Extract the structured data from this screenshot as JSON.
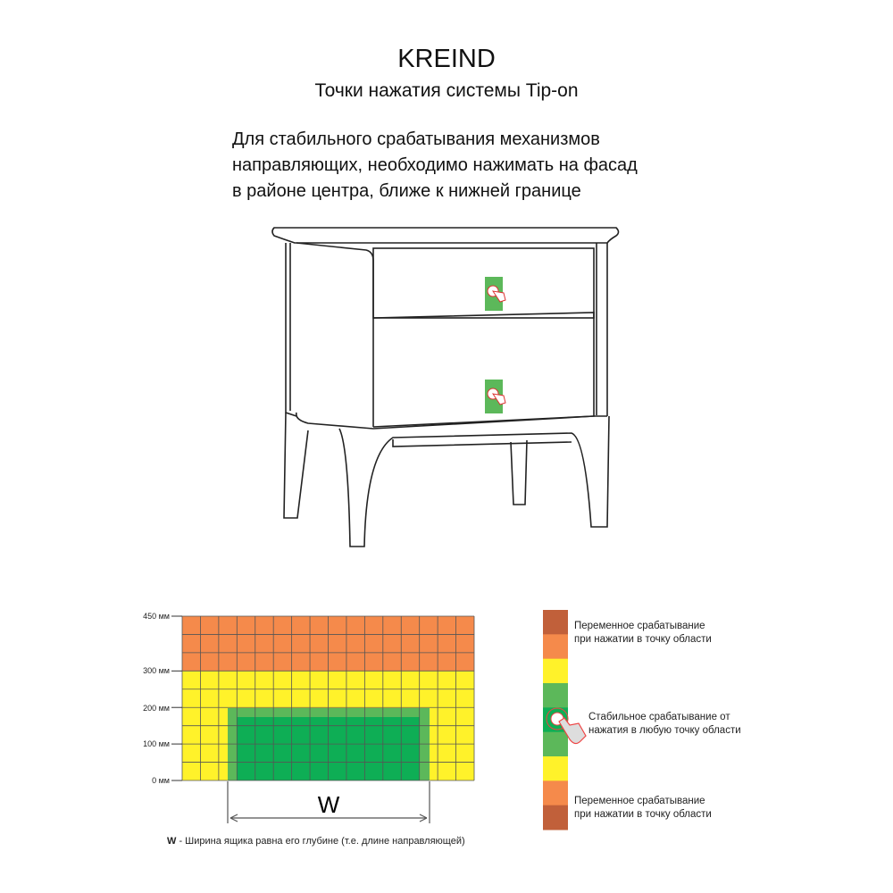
{
  "header": {
    "brand": "KREIND",
    "subtitle": "Точки нажатия системы Tip-on"
  },
  "description": [
    "Для стабильного срабатывания механизмов",
    "направляющих, необходимо нажимать на фасад",
    "в районе центра, ближе к нижней границе"
  ],
  "diagram": {
    "y_labels": [
      "450 мм",
      "300 мм",
      "200 мм",
      "100 мм",
      "0 мм"
    ],
    "width_symbol": "W",
    "footnote_bold": "W",
    "footnote": " - Ширина ящика равна его глубине (т.е. длине направляющей)",
    "colors": {
      "orange": "#f58a4b",
      "yellow": "#fff22a",
      "light_green": "#5cb85a",
      "dark_green": "#0eae55",
      "brown": "#c1603a",
      "grid_line": "#555555"
    }
  },
  "legend": {
    "top": [
      "Переменное срабатывание",
      "при нажатии в точку области"
    ],
    "middle": [
      "Стабильное срабатывание от",
      "нажатия в любую точку области"
    ],
    "bottom": [
      "Переменное срабатывание",
      "при нажатии в точку области"
    ]
  },
  "icons": [
    "hand-press-icon"
  ]
}
